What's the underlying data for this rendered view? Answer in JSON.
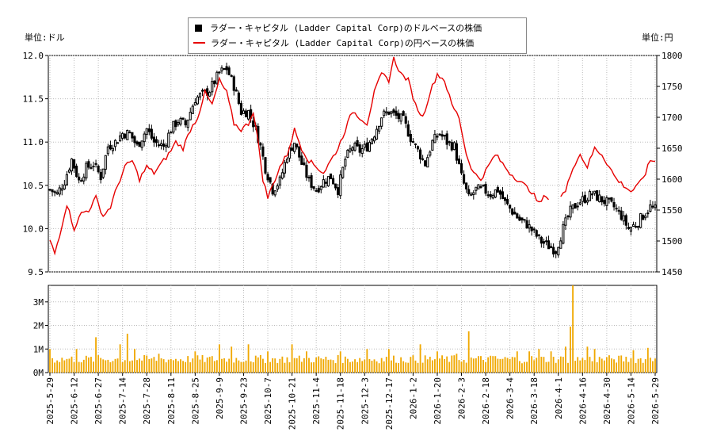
{
  "chart_data": [
    {
      "type": "candlestick",
      "units": {
        "left": "単位:ドル",
        "right": "単位:円"
      },
      "legend": [
        {
          "label": "ラダー・キャピタル (Ladder Capital Corp)のドルベースの株価",
          "color": "#000000",
          "marker": "box"
        },
        {
          "label": "ラダー・キャピタル (Ladder Capital Corp)の円ベースの株価",
          "color": "#e60000",
          "marker": "line"
        }
      ],
      "left_axis": {
        "min": 9.5,
        "max": 12.0,
        "ticks": [
          "9.5",
          "10.0",
          "10.5",
          "11.0",
          "11.5",
          "12.0"
        ]
      },
      "right_axis": {
        "min": 1450,
        "max": 1800,
        "ticks": [
          "1450",
          "1500",
          "1550",
          "1600",
          "1650",
          "1700",
          "1750",
          "1800"
        ]
      },
      "x_ticks": [
        "2025-5-29",
        "2025-6-12",
        "2025-6-27",
        "2025-7-14",
        "2025-7-28",
        "2025-8-11",
        "2025-8-25",
        "2025-9-9",
        "2025-9-23",
        "2025-10-7",
        "2025-10-21",
        "2025-11-4",
        "2025-11-18",
        "2025-12-3",
        "2025-12-17",
        "2026-1-2",
        "2026-1-20",
        "2026-2-3",
        "2026-2-18",
        "2026-3-4",
        "2026-3-18",
        "2026-4-1",
        "2026-4-16",
        "2026-4-30",
        "2026-5-14",
        "2026-5-29"
      ],
      "x_tick_trading_days": [
        0,
        10,
        20,
        30,
        40,
        50,
        60,
        70,
        80,
        90,
        100,
        110,
        120,
        130,
        140,
        150,
        160,
        170,
        180,
        190,
        200,
        210,
        220,
        230,
        240,
        250
      ],
      "trading_days": 251,
      "price_keypoints": [
        [
          0,
          10.45
        ],
        [
          3,
          10.4
        ],
        [
          6,
          10.55
        ],
        [
          9,
          10.8
        ],
        [
          12,
          10.55
        ],
        [
          15,
          10.7
        ],
        [
          18,
          10.75
        ],
        [
          21,
          10.6
        ],
        [
          24,
          10.95
        ],
        [
          27,
          11.0
        ],
        [
          30,
          11.1
        ],
        [
          33,
          11.1
        ],
        [
          36,
          10.95
        ],
        [
          40,
          11.15
        ],
        [
          43,
          11.0
        ],
        [
          47,
          10.95
        ],
        [
          50,
          11.15
        ],
        [
          53,
          11.25
        ],
        [
          56,
          11.2
        ],
        [
          60,
          11.5
        ],
        [
          63,
          11.55
        ],
        [
          66,
          11.6
        ],
        [
          70,
          11.8
        ],
        [
          73,
          11.85
        ],
        [
          76,
          11.65
        ],
        [
          79,
          11.35
        ],
        [
          82,
          11.35
        ],
        [
          85,
          11.15
        ],
        [
          87,
          10.95
        ],
        [
          89,
          10.7
        ],
        [
          92,
          10.45
        ],
        [
          95,
          10.55
        ],
        [
          98,
          10.85
        ],
        [
          101,
          11.0
        ],
        [
          104,
          10.75
        ],
        [
          107,
          10.55
        ],
        [
          110,
          10.45
        ],
        [
          113,
          10.55
        ],
        [
          116,
          10.6
        ],
        [
          119,
          10.45
        ],
        [
          122,
          10.8
        ],
        [
          125,
          10.95
        ],
        [
          128,
          10.9
        ],
        [
          131,
          10.95
        ],
        [
          134,
          11.1
        ],
        [
          137,
          11.3
        ],
        [
          140,
          11.35
        ],
        [
          143,
          11.3
        ],
        [
          146,
          11.25
        ],
        [
          149,
          11.05
        ],
        [
          152,
          10.9
        ],
        [
          155,
          10.75
        ],
        [
          158,
          11.0
        ],
        [
          161,
          11.1
        ],
        [
          164,
          11.0
        ],
        [
          167,
          10.95
        ],
        [
          170,
          10.6
        ],
        [
          173,
          10.35
        ],
        [
          176,
          10.45
        ],
        [
          179,
          10.45
        ],
        [
          182,
          10.4
        ],
        [
          185,
          10.45
        ],
        [
          188,
          10.3
        ],
        [
          191,
          10.2
        ],
        [
          194,
          10.1
        ],
        [
          197,
          10.05
        ],
        [
          200,
          9.95
        ],
        [
          203,
          9.85
        ],
        [
          206,
          9.8
        ],
        [
          209,
          9.75
        ],
        [
          212,
          10.0
        ],
        [
          215,
          10.2
        ],
        [
          218,
          10.3
        ],
        [
          221,
          10.35
        ],
        [
          224,
          10.4
        ],
        [
          227,
          10.35
        ],
        [
          230,
          10.3
        ],
        [
          233,
          10.25
        ],
        [
          236,
          10.15
        ],
        [
          239,
          10.0
        ],
        [
          242,
          10.05
        ],
        [
          245,
          10.15
        ],
        [
          248,
          10.25
        ],
        [
          250,
          10.22
        ]
      ],
      "yen_keypoints": [
        [
          0,
          1500
        ],
        [
          2,
          1480
        ],
        [
          4,
          1510
        ],
        [
          7,
          1560
        ],
        [
          10,
          1520
        ],
        [
          13,
          1545
        ],
        [
          16,
          1550
        ],
        [
          19,
          1570
        ],
        [
          22,
          1540
        ],
        [
          25,
          1555
        ],
        [
          28,
          1590
        ],
        [
          31,
          1620
        ],
        [
          34,
          1630
        ],
        [
          37,
          1600
        ],
        [
          40,
          1620
        ],
        [
          43,
          1610
        ],
        [
          46,
          1625
        ],
        [
          49,
          1640
        ],
        [
          52,
          1660
        ],
        [
          55,
          1650
        ],
        [
          58,
          1680
        ],
        [
          61,
          1700
        ],
        [
          64,
          1740
        ],
        [
          67,
          1720
        ],
        [
          70,
          1760
        ],
        [
          73,
          1740
        ],
        [
          76,
          1690
        ],
        [
          79,
          1680
        ],
        [
          82,
          1690
        ],
        [
          84,
          1710
        ],
        [
          86,
          1660
        ],
        [
          88,
          1600
        ],
        [
          90,
          1570
        ],
        [
          92,
          1590
        ],
        [
          95,
          1620
        ],
        [
          98,
          1640
        ],
        [
          101,
          1680
        ],
        [
          104,
          1650
        ],
        [
          107,
          1630
        ],
        [
          110,
          1620
        ],
        [
          113,
          1610
        ],
        [
          116,
          1630
        ],
        [
          119,
          1650
        ],
        [
          122,
          1680
        ],
        [
          125,
          1710
        ],
        [
          128,
          1700
        ],
        [
          131,
          1690
        ],
        [
          134,
          1740
        ],
        [
          137,
          1770
        ],
        [
          140,
          1760
        ],
        [
          142,
          1795
        ],
        [
          145,
          1770
        ],
        [
          148,
          1760
        ],
        [
          151,
          1720
        ],
        [
          154,
          1700
        ],
        [
          157,
          1740
        ],
        [
          160,
          1770
        ],
        [
          163,
          1760
        ],
        [
          166,
          1720
        ],
        [
          169,
          1700
        ],
        [
          172,
          1640
        ],
        [
          175,
          1610
        ],
        [
          178,
          1600
        ],
        [
          181,
          1620
        ],
        [
          184,
          1640
        ],
        [
          187,
          1625
        ],
        [
          190,
          1610
        ],
        [
          193,
          1600
        ],
        [
          196,
          1590
        ],
        [
          199,
          1580
        ],
        [
          202,
          1560
        ],
        [
          205,
          1575
        ],
        [
          207,
          1560
        ],
        [
          210,
          1570
        ],
        [
          213,
          1580
        ],
        [
          216,
          1620
        ],
        [
          219,
          1640
        ],
        [
          222,
          1620
        ],
        [
          225,
          1650
        ],
        [
          228,
          1640
        ],
        [
          231,
          1620
        ],
        [
          234,
          1600
        ],
        [
          237,
          1590
        ],
        [
          240,
          1580
        ],
        [
          243,
          1590
        ],
        [
          246,
          1610
        ],
        [
          248,
          1630
        ],
        [
          250,
          1630
        ]
      ],
      "yen_gap_range": [
        206,
        211
      ],
      "volume_axis": {
        "min": 0,
        "max": 3.7,
        "ticks": [
          "0M",
          "1M",
          "2M",
          "3M"
        ],
        "tick_values": [
          0,
          1,
          2,
          3
        ]
      },
      "volume_color": "#f0a800",
      "volume_base": 0.5,
      "volume_spikes": [
        [
          0,
          1.0
        ],
        [
          11,
          1.0
        ],
        [
          19,
          1.5
        ],
        [
          29,
          1.2
        ],
        [
          32,
          1.65
        ],
        [
          35,
          1.0
        ],
        [
          45,
          0.8
        ],
        [
          60,
          0.9
        ],
        [
          70,
          1.2
        ],
        [
          75,
          1.1
        ],
        [
          82,
          1.2
        ],
        [
          90,
          0.9
        ],
        [
          100,
          1.2
        ],
        [
          106,
          0.9
        ],
        [
          120,
          0.9
        ],
        [
          131,
          1.0
        ],
        [
          140,
          1.0
        ],
        [
          153,
          1.2
        ],
        [
          160,
          0.9
        ],
        [
          168,
          0.8
        ],
        [
          173,
          1.75
        ],
        [
          183,
          0.7
        ],
        [
          193,
          0.9
        ],
        [
          198,
          0.9
        ],
        [
          202,
          1.0
        ],
        [
          207,
          0.9
        ],
        [
          213,
          1.1
        ],
        [
          215,
          1.95
        ],
        [
          216,
          3.75
        ],
        [
          222,
          1.1
        ],
        [
          225,
          1.0
        ],
        [
          232,
          0.6
        ],
        [
          241,
          0.95
        ],
        [
          247,
          1.05
        ],
        [
          250,
          0.6
        ]
      ],
      "grid": true
    }
  ]
}
